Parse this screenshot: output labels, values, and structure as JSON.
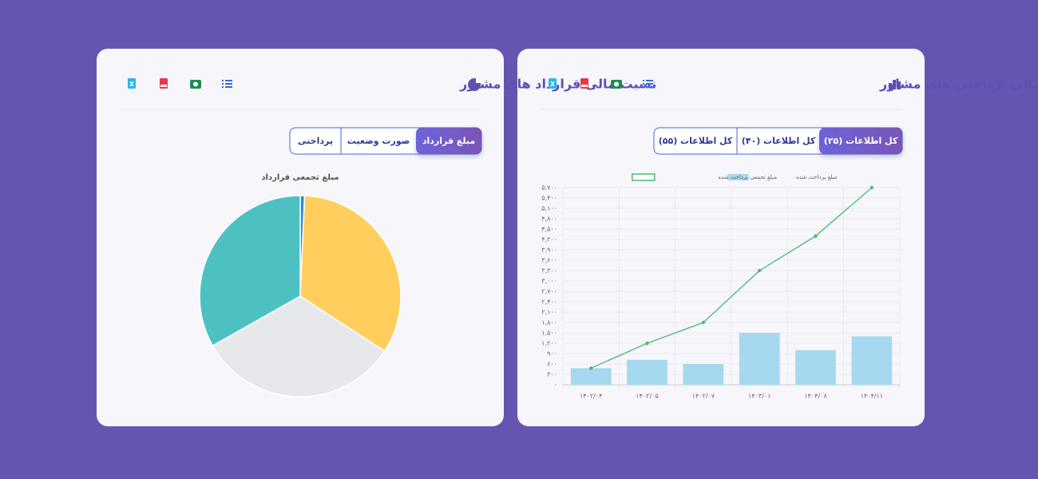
{
  "cards": [
    {
      "title": "روند مالی پرداختی های مشاور",
      "tabs": [
        "کل اطلاعات (۲۵)",
        "کل اطلاعات (۴۰)",
        "کل اطلاعات (۵۵)"
      ]
    },
    {
      "title": "نسبت مالی قرارداد های مشاور",
      "tabs": [
        "مبلغ قرارداد",
        "صورت وضعیت",
        "پرداختی"
      ]
    }
  ],
  "chart_data": [
    {
      "type": "combo",
      "categories": [
        "۱۴۰۲/۰۴",
        "۱۴۰۲/۰۵",
        "۱۴۰۲/۰۷",
        "۱۴۰۳/۰۱",
        "۱۴۰۴/۰۸",
        "۱۴۰۴/۱۱"
      ],
      "series": [
        {
          "name": "مبلغ پرداخت شده",
          "type": "bar",
          "color": "#a6d8ef",
          "values": [
            480,
            720,
            600,
            1500,
            1000,
            1400
          ]
        },
        {
          "name": "مبلغ تجمعی پرداخت شده",
          "type": "line",
          "color": "#4cbb6c",
          "values": [
            480,
            1200,
            1800,
            3300,
            4300,
            5700
          ]
        }
      ],
      "ylim": [
        0,
        5700
      ],
      "yticks": [
        {
          "value": 0,
          "label": "۰"
        },
        {
          "value": 300,
          "label": "۳۰۰"
        },
        {
          "value": 600,
          "label": "۶۰۰"
        },
        {
          "value": 900,
          "label": "۹۰۰"
        },
        {
          "value": 1200,
          "label": "۱,۲۰۰"
        },
        {
          "value": 1500,
          "label": "۱,۵۰۰"
        },
        {
          "value": 1800,
          "label": "۱,۸۰۰"
        },
        {
          "value": 2100,
          "label": "۲,۱۰۰"
        },
        {
          "value": 2400,
          "label": "۲,۴۰۰"
        },
        {
          "value": 2700,
          "label": "۲,۷۰۰"
        },
        {
          "value": 3000,
          "label": "۳,۰۰۰"
        },
        {
          "value": 3300,
          "label": "۳,۳۰۰"
        },
        {
          "value": 3600,
          "label": "۳,۶۰۰"
        },
        {
          "value": 3900,
          "label": "۳,۹۰۰"
        },
        {
          "value": 4200,
          "label": "۴,۲۰۰"
        },
        {
          "value": 4500,
          "label": "۴,۵۰۰"
        },
        {
          "value": 4800,
          "label": "۴,۸۰۰"
        },
        {
          "value": 5100,
          "label": "۵,۱۰۰"
        },
        {
          "value": 5400,
          "label": "۵,۴۰۰"
        },
        {
          "value": 5700,
          "label": "۵,۷۰۰"
        }
      ],
      "grid": true
    },
    {
      "type": "pie",
      "title": "مبلغ تجمعی قرارداد",
      "values": [
        0.7,
        33.5,
        32.6,
        33.2
      ],
      "colors": [
        "#2a8bd8",
        "#ffce5c",
        "#e6e8ec",
        "#4dc1c2"
      ]
    }
  ]
}
